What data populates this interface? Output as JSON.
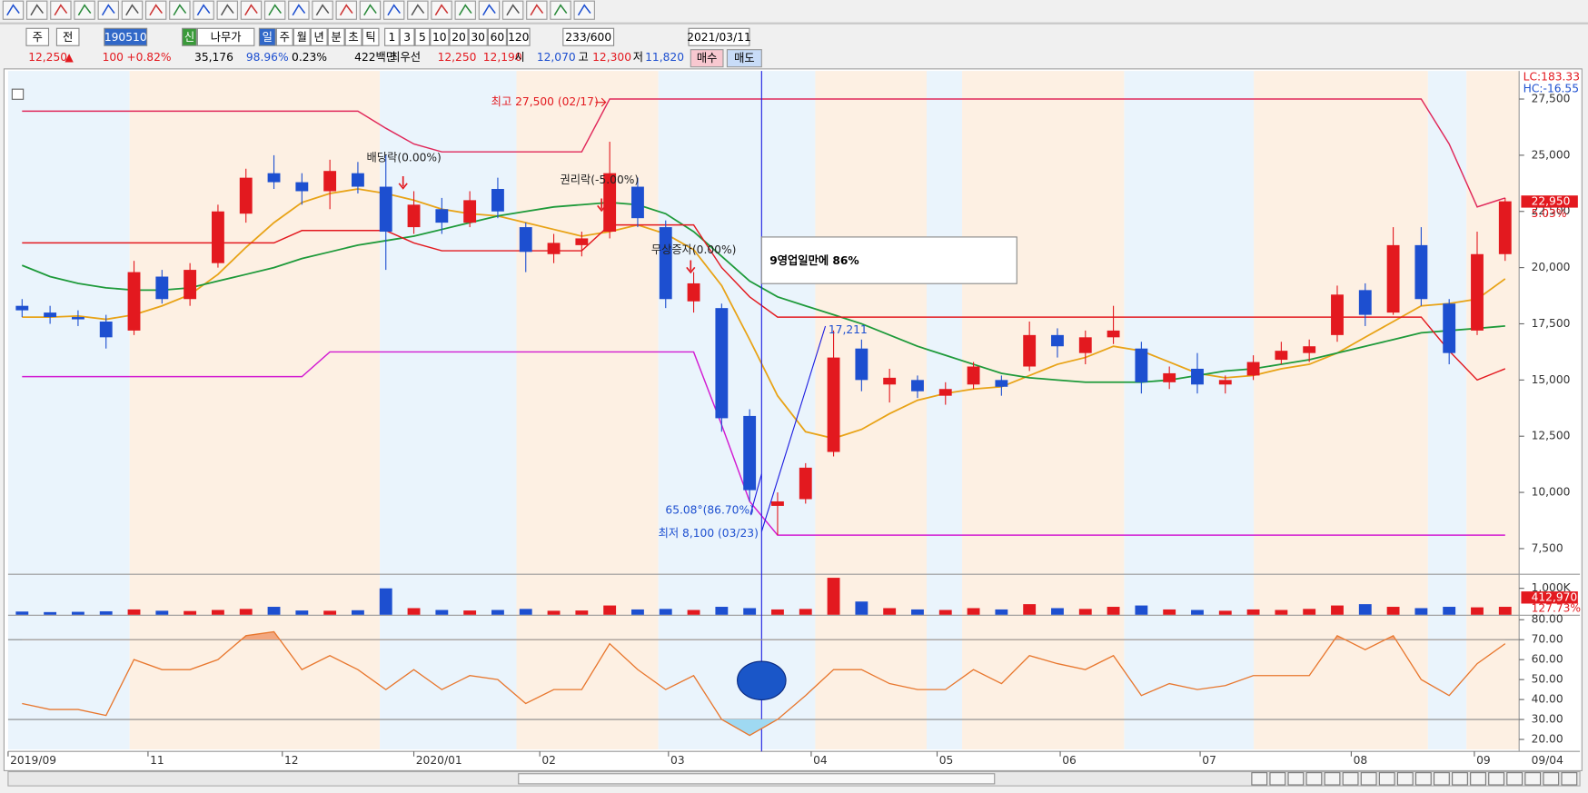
{
  "controls": {
    "market": "주",
    "scope": "전",
    "code": "190510",
    "credit": "신",
    "name": "나무가",
    "periods": [
      "일",
      "주",
      "월",
      "년",
      "분",
      "초",
      "틱"
    ],
    "intervals": [
      "1",
      "3",
      "5",
      "10",
      "20",
      "30",
      "60",
      "120"
    ],
    "count": "233/600",
    "date": "2021/03/11"
  },
  "quote": {
    "price": "12,250",
    "arrow": "▲",
    "change": "100",
    "change_pct": "+0.82%",
    "volume": "35,176",
    "vol_ratio": "98.96%",
    "turnover": "0.23%",
    "amount": "422백만",
    "best_label": "최우선",
    "ask": "12,250",
    "bid": "12,190",
    "open_label": "시",
    "open": "12,070",
    "high_label": "고",
    "high": "12,300",
    "low_label": "저",
    "low": "11,820",
    "buy": "매수",
    "sell": "매도"
  },
  "chart_data": [
    {
      "type": "candlestick",
      "xlim": [
        0,
        54
      ],
      "ylim": [
        6450,
        28750
      ],
      "xticks": [
        {
          "value": 0,
          "label": "2019/09"
        },
        {
          "value": 5.0,
          "label": "11"
        },
        {
          "value": 9.8,
          "label": "12"
        },
        {
          "value": 14.5,
          "label": "2020/01"
        },
        {
          "value": 19.0,
          "label": "02"
        },
        {
          "value": 23.6,
          "label": "03"
        },
        {
          "value": 28.7,
          "label": "04"
        },
        {
          "value": 33.2,
          "label": "05"
        },
        {
          "value": 37.6,
          "label": "06"
        },
        {
          "value": 42.6,
          "label": "07"
        },
        {
          "value": 48.0,
          "label": "08"
        },
        {
          "value": 52.4,
          "label": "09"
        }
      ],
      "last_date": "09/04",
      "yticks": [
        {
          "value": 7500,
          "label": "7,500"
        },
        {
          "value": 10000,
          "label": "10,000"
        },
        {
          "value": 12500,
          "label": "12,500"
        },
        {
          "value": 15000,
          "label": "15,000"
        },
        {
          "value": 17500,
          "label": "17,500"
        },
        {
          "value": 20000,
          "label": "20,000"
        },
        {
          "value": 22500,
          "label": "22,500"
        },
        {
          "value": 25000,
          "label": "25,000"
        },
        {
          "value": 27500,
          "label": "27,500"
        }
      ],
      "up_color": "#e3191f",
      "down_color": "#1d4fd0",
      "open": [
        18300,
        18000,
        17800,
        17600,
        17200,
        19600,
        18600,
        20200,
        22400,
        24200,
        23800,
        23400,
        24200,
        23600,
        21800,
        22600,
        22000,
        23500,
        21800,
        20600,
        21000,
        21600,
        23600,
        21800,
        18500,
        18200,
        13400,
        9400,
        9700,
        11800,
        16400,
        14800,
        15000,
        14300,
        14800,
        15000,
        15600,
        17000,
        16200,
        16900,
        16400,
        14900,
        15500,
        14800,
        15200,
        15900,
        16200,
        17000,
        19000,
        18000,
        21000,
        18400,
        17200,
        20600
      ],
      "high": [
        18600,
        18300,
        18100,
        17900,
        20300,
        19900,
        20200,
        22800,
        24400,
        25000,
        24200,
        24800,
        24700,
        25000,
        23400,
        23100,
        23400,
        24000,
        22000,
        21500,
        21600,
        25600,
        24000,
        22100,
        19800,
        18400,
        13700,
        10000,
        11300,
        17200,
        16800,
        15500,
        15200,
        14900,
        15800,
        15200,
        17600,
        17300,
        17200,
        18300,
        16700,
        15600,
        16200,
        15200,
        16100,
        16700,
        16800,
        19200,
        19300,
        21800,
        21800,
        18600,
        21600,
        23100
      ],
      "low": [
        17800,
        17500,
        17400,
        16400,
        17000,
        18400,
        18300,
        20000,
        22000,
        23500,
        22800,
        22600,
        23300,
        19900,
        21500,
        21500,
        21800,
        22200,
        19800,
        20200,
        20500,
        21300,
        21800,
        18200,
        18000,
        12700,
        9600,
        8100,
        9500,
        11600,
        14500,
        14000,
        14200,
        13900,
        14600,
        14300,
        15400,
        16000,
        15700,
        16600,
        14400,
        14600,
        14400,
        14400,
        15000,
        15700,
        15800,
        16700,
        17400,
        17900,
        18300,
        15700,
        17000,
        20300
      ],
      "close": [
        18100,
        17800,
        17700,
        16900,
        19800,
        18600,
        19900,
        22500,
        24000,
        23800,
        23400,
        24300,
        23600,
        21600,
        22800,
        22000,
        23000,
        22500,
        20700,
        21100,
        21300,
        24200,
        22200,
        18600,
        19300,
        13300,
        10100,
        9600,
        11100,
        16000,
        15000,
        15100,
        14500,
        14600,
        15600,
        14700,
        17000,
        16500,
        16900,
        17200,
        14900,
        15300,
        14800,
        15000,
        15800,
        16300,
        16500,
        18800,
        17900,
        21000,
        18600,
        16200,
        20600,
        22950
      ],
      "overlays": [
        {
          "color": "#e8a317",
          "values": [
            17800,
            17800,
            17850,
            17700,
            17900,
            18300,
            18800,
            19700,
            20900,
            22000,
            22900,
            23300,
            23500,
            23300,
            23000,
            22600,
            22400,
            22300,
            22000,
            21700,
            21400,
            21600,
            21900,
            21500,
            20800,
            19200,
            16800,
            14300,
            12700,
            12400,
            12800,
            13500,
            14100,
            14400,
            14600,
            14700,
            15200,
            15700,
            16000,
            16500,
            16300,
            15800,
            15300,
            15100,
            15200,
            15500,
            15700,
            16200,
            16900,
            17600,
            18300,
            18400,
            18600,
            19500
          ]
        },
        {
          "color": "#1e9a3a",
          "values": [
            20100,
            19600,
            19300,
            19100,
            19000,
            19000,
            19100,
            19400,
            19700,
            20000,
            20400,
            20700,
            21000,
            21200,
            21400,
            21700,
            22000,
            22300,
            22500,
            22700,
            22800,
            22900,
            22800,
            22400,
            21600,
            20500,
            19400,
            18700,
            18300,
            17900,
            17500,
            17000,
            16500,
            16100,
            15700,
            15300,
            15100,
            15000,
            14900,
            14900,
            14900,
            15000,
            15200,
            15400,
            15500,
            15700,
            15900,
            16200,
            16500,
            16800,
            17100,
            17200,
            17300,
            17400
          ]
        },
        {
          "color": "#e3191f",
          "values": [
            21100,
            21100,
            21100,
            21100,
            21100,
            21100,
            21100,
            21100,
            21100,
            21100,
            21650,
            21650,
            21650,
            21650,
            21100,
            20750,
            20750,
            20750,
            20750,
            20750,
            20750,
            21900,
            21900,
            21900,
            21900,
            20000,
            18700,
            17800,
            17800,
            17800,
            17800,
            17800,
            17800,
            17800,
            17800,
            17800,
            17800,
            17800,
            17800,
            17800,
            17800,
            17800,
            17800,
            17800,
            17800,
            17800,
            17800,
            17800,
            17800,
            17800,
            17800,
            16300,
            15000,
            15500
          ]
        },
        {
          "color": "#e0285a",
          "values": [
            26960,
            26960,
            26960,
            26960,
            26960,
            26960,
            26960,
            26960,
            26960,
            26960,
            26960,
            26960,
            26960,
            26200,
            25500,
            25150,
            25150,
            25150,
            25150,
            25150,
            25150,
            27500,
            27500,
            27500,
            27500,
            27500,
            27500,
            27500,
            27500,
            27500,
            27500,
            27500,
            27500,
            27500,
            27500,
            27500,
            27500,
            27500,
            27500,
            27500,
            27500,
            27500,
            27500,
            27500,
            27500,
            27500,
            27500,
            27500,
            27500,
            27500,
            27500,
            25500,
            22700,
            23100
          ]
        },
        {
          "color": "#d21bd2",
          "values": [
            15150,
            15150,
            15150,
            15150,
            15150,
            15150,
            15150,
            15150,
            15150,
            15150,
            15150,
            16250,
            16250,
            16250,
            16250,
            16250,
            16250,
            16250,
            16250,
            16250,
            16250,
            16250,
            16250,
            16250,
            16250,
            13000,
            9600,
            8100,
            8100,
            8100,
            8100,
            8100,
            8100,
            8100,
            8100,
            8100,
            8100,
            8100,
            8100,
            8100,
            8100,
            8100,
            8100,
            8100,
            8100,
            8100,
            8100,
            8100,
            8100,
            8100,
            8100,
            8100,
            8100,
            8100
          ]
        }
      ],
      "annotations": {
        "high": "최고 27,500 (02/17)",
        "low": "최저 8,100 (03/23)",
        "dividend": "배당락(0.00%)",
        "rights": "권리락(-5.00%)",
        "bonus": "무상증자(0.00%)",
        "headline": "9영업일만에  86%",
        "target": "17,211",
        "angle": "65.08°(86.70%)"
      },
      "side_labels": {
        "lc": "LC:183.33",
        "hc": "HC:-16.55",
        "last": "22,950",
        "last_pct": "5.03%"
      }
    },
    {
      "type": "bar",
      "xlim": [
        0,
        54
      ],
      "ylim": [
        0,
        1420000
      ],
      "yticks": [
        {
          "value": 1000000,
          "label": "1,000K"
        }
      ],
      "values": [
        120000,
        100000,
        110000,
        130000,
        200000,
        150000,
        140000,
        180000,
        220000,
        300000,
        160000,
        150000,
        170000,
        1000000,
        250000,
        180000,
        160000,
        180000,
        220000,
        150000,
        160000,
        350000,
        200000,
        220000,
        180000,
        300000,
        250000,
        200000,
        220000,
        1400000,
        500000,
        250000,
        200000,
        180000,
        250000,
        200000,
        400000,
        250000,
        220000,
        300000,
        350000,
        200000,
        180000,
        150000,
        200000,
        180000,
        220000,
        350000,
        400000,
        300000,
        250000,
        300000,
        280000,
        300000
      ],
      "side_labels": {
        "last": "412,970",
        "pct": "127.73%"
      }
    },
    {
      "type": "line",
      "xlim": [
        0,
        54
      ],
      "ylim": [
        15,
        82
      ],
      "color": "#e8772e",
      "yticks": [
        {
          "value": 20,
          "label": "20.00"
        },
        {
          "value": 30,
          "label": "30.00"
        },
        {
          "value": 40,
          "label": "40.00"
        },
        {
          "value": 50,
          "label": "50.00"
        },
        {
          "value": 60,
          "label": "60.00"
        },
        {
          "value": 70,
          "label": "70.00"
        },
        {
          "value": 80,
          "label": "80.00"
        }
      ],
      "upper_level": 70,
      "lower_level": 30,
      "values": [
        38,
        35,
        35,
        32,
        60,
        55,
        55,
        60,
        72,
        74,
        55,
        62,
        55,
        45,
        55,
        45,
        52,
        50,
        38,
        45,
        45,
        68,
        55,
        45,
        52,
        30,
        22,
        30,
        42,
        55,
        55,
        48,
        45,
        45,
        55,
        48,
        62,
        58,
        55,
        62,
        42,
        48,
        45,
        47,
        52,
        52,
        52,
        72,
        65,
        72,
        50,
        42,
        58,
        68
      ]
    }
  ]
}
